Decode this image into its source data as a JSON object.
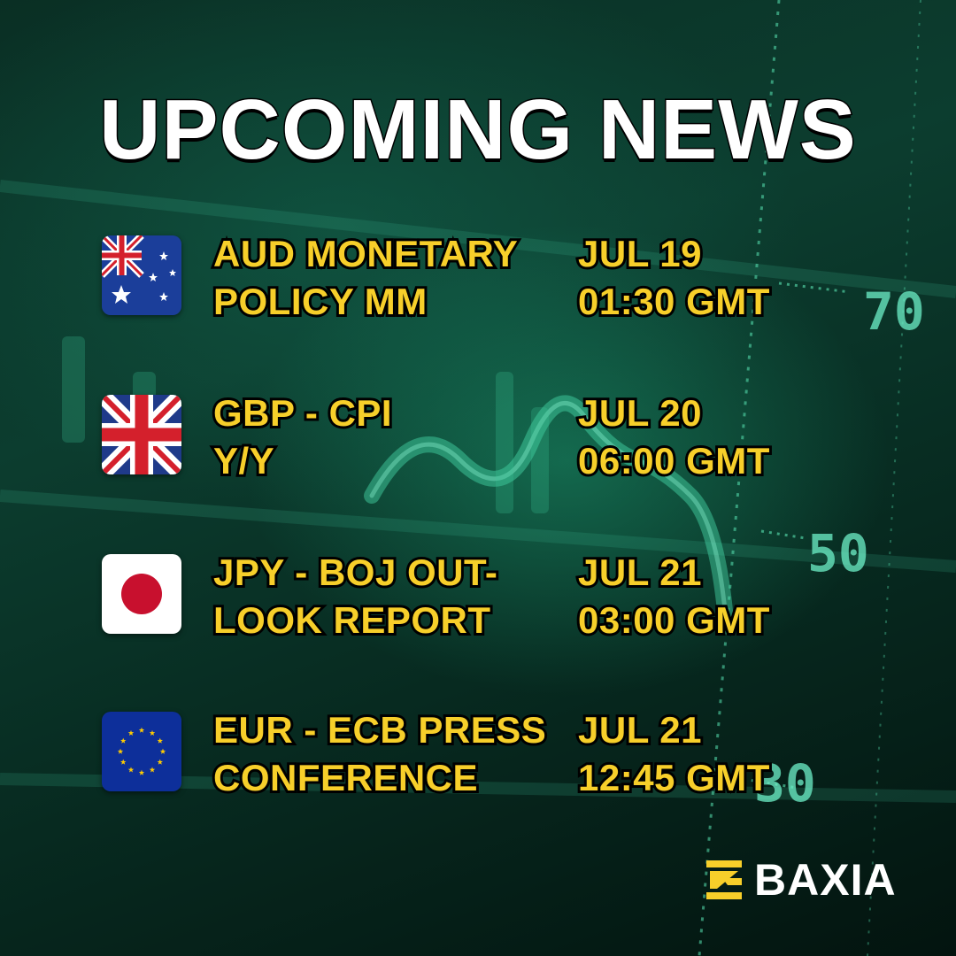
{
  "title": "UPCOMING NEWS",
  "events": [
    {
      "flag": "australia-flag",
      "name_line1": "AUD MONETARY",
      "name_line2": "POLICY MM",
      "date": "JUL 19",
      "time": "01:30 GMT"
    },
    {
      "flag": "united-kingdom-flag",
      "name_line1": "GBP - CPI",
      "name_line2": "Y/Y",
      "date": "JUL 20",
      "time": "06:00 GMT"
    },
    {
      "flag": "japan-flag",
      "name_line1": "JPY - BOJ OUT-",
      "name_line2": "LOOK REPORT",
      "date": "JUL 21",
      "time": "03:00 GMT"
    },
    {
      "flag": "european-union-flag",
      "name_line1": "EUR - ECB PRESS",
      "name_line2": "CONFERENCE",
      "date": "JUL 21",
      "time": "12:45 GMT"
    }
  ],
  "background_scale_labels": [
    "70",
    "50",
    "30"
  ],
  "brand": {
    "name": "BAXIA",
    "icon": "baxia-logo-icon"
  },
  "colors": {
    "accent_yellow": "#f7cf2a",
    "title_white": "#ffffff",
    "chart_green": "#3fe0b0"
  }
}
